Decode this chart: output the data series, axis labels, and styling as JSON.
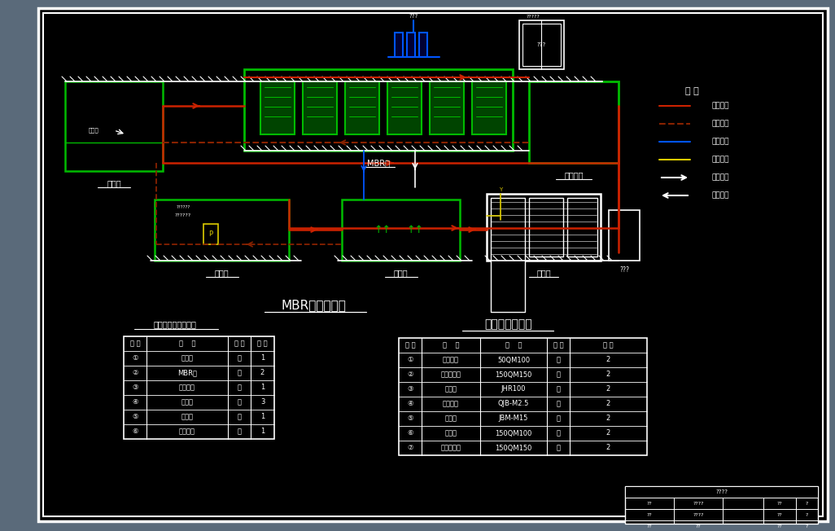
{
  "bg_color": "#000000",
  "outer_bg": "#5a6a7a",
  "green": "#00bb00",
  "dark_green": "#004400",
  "red": "#cc2200",
  "dark_red": "#882200",
  "blue": "#2244ff",
  "bright_blue": "#0055ff",
  "yellow": "#ddcc00",
  "white": "#ffffff",
  "title_text": "MBR工艺流程图",
  "subtitle_text": "主要设备一览表",
  "table1_title": "构筑物、设备统计表",
  "table1_rows": [
    [
      "①",
      "集水井",
      "个",
      "1"
    ],
    [
      "②",
      "MBR池",
      "座",
      "2"
    ],
    [
      "③",
      "中间水池",
      "座",
      "1"
    ],
    [
      "④",
      "过滤池",
      "座",
      "3"
    ],
    [
      "⑤",
      "清水池",
      "座",
      "1"
    ],
    [
      "⑥",
      "污泥储池",
      "座",
      "1"
    ]
  ],
  "table2_rows": [
    [
      "①",
      "缓冲液泵",
      "50QM100",
      "台",
      "2"
    ],
    [
      "②",
      "污水提升泵",
      "150QM150",
      "台",
      "2"
    ],
    [
      "③",
      "真空泵",
      "JHR100",
      "台",
      "2"
    ],
    [
      "④",
      "内回流泵",
      "QJB-M2.5",
      "台",
      "2"
    ],
    [
      "⑤",
      "计量泵",
      "JBM-M15",
      "台",
      "2"
    ],
    [
      "⑥",
      "污泥泵",
      "150QM100",
      "台",
      "2"
    ],
    [
      "⑦",
      "污水回用泵",
      "150QM150",
      "台",
      "2"
    ]
  ],
  "legend_title": "图 例",
  "legend_items": [
    {
      "label": "回水管线",
      "color": "#cc2200",
      "style": "solid"
    },
    {
      "label": "回液管线",
      "color": "#882200",
      "style": "dashed"
    },
    {
      "label": "空气管线",
      "color": "#2244ff",
      "style": "solid"
    },
    {
      "label": "加药管线",
      "color": "#ddcc00",
      "style": "solid"
    },
    {
      "label": "出水方向",
      "color": "#ffffff",
      "style": "arrow_right"
    },
    {
      "label": "进水方向",
      "color": "#ffffff",
      "style": "arrow_left"
    }
  ]
}
